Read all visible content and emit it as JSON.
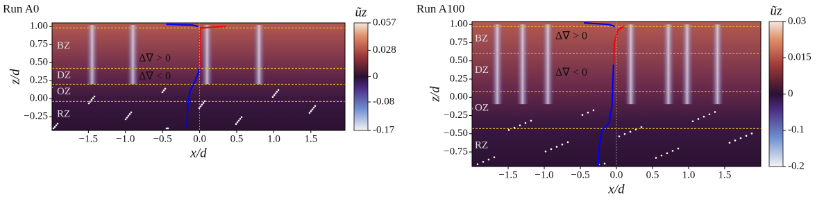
{
  "chart_data": [
    {
      "type": "field",
      "title": "Run A0",
      "xlabel": "x/d",
      "ylabel": "z/d",
      "xlim": [
        -1.99,
        1.96
      ],
      "ylim": [
        -0.44,
        1.05
      ],
      "xticks": [
        {
          "value": -1.5,
          "label": "−1.5"
        },
        {
          "value": -1,
          "label": "−1.0"
        },
        {
          "value": -0.5,
          "label": "−0.5"
        },
        {
          "value": 0,
          "label": "0.0"
        },
        0.5,
        {
          "value": 1,
          "label": "1.0"
        },
        1.5
      ],
      "yticks": [
        {
          "value": -0.25,
          "label": "−0.25"
        },
        {
          "value": 0,
          "label": "0.00"
        },
        {
          "value": 0.25,
          "label": "0.25"
        },
        {
          "value": 0.5,
          "label": "0.50"
        },
        {
          "value": 0.75,
          "label": "0.75"
        },
        {
          "value": 1,
          "label": "1.00"
        }
      ],
      "zone_boundaries": [
        0.98,
        0.42,
        0.2,
        -0.04
      ],
      "zones": [
        "BZ",
        "DZ",
        "OZ",
        "RZ"
      ],
      "annotations": [
        {
          "text": "Δ∇ > 0",
          "color": "#ff0000"
        },
        {
          "text": "Δ∇ < 0",
          "color": "#0000ff"
        }
      ],
      "profiles": [
        {
          "color": "#0000ff",
          "x": [
            -0.17,
            -0.16,
            -0.13,
            -0.06,
            -0.02,
            -0.01
          ],
          "y": [
            -0.4,
            -0.1,
            0.1,
            0.25,
            0.35,
            0.42
          ]
        },
        {
          "color": "#ff0000",
          "x": [
            0,
            0,
            0.01,
            0.35
          ],
          "y": [
            0.42,
            0.8,
            0.98,
            1.0
          ]
        },
        {
          "color": "#0000ff",
          "x": [
            -0.45,
            -0.1,
            -0.02
          ],
          "y": [
            1.03,
            1.02,
            1.0
          ]
        }
      ],
      "colorbar": {
        "label": "ũz",
        "clim": [
          -0.17,
          0.057
        ],
        "center": 0,
        "ticks": [
          0.057,
          0.028,
          0,
          -0.08,
          -0.17
        ]
      }
    },
    {
      "type": "field",
      "title": "Run A100",
      "xlabel": "x/d",
      "ylabel": "z/d",
      "xlim": [
        -2,
        2
      ],
      "ylim": [
        -0.95,
        1.04
      ],
      "xticks": [
        {
          "value": -1.5,
          "label": "−1.5"
        },
        {
          "value": -1,
          "label": "−1.0"
        },
        {
          "value": -0.5,
          "label": "−0.5"
        },
        {
          "value": 0,
          "label": "0.0"
        },
        0.5,
        {
          "value": 1,
          "label": "1.0"
        },
        1.5
      ],
      "yticks": [
        {
          "value": -0.75,
          "label": "−0.75"
        },
        {
          "value": -0.5,
          "label": "−0.50"
        },
        {
          "value": -0.25,
          "label": "−0.25"
        },
        {
          "value": 0,
          "label": "0.00"
        },
        {
          "value": 0.25,
          "label": "0.25"
        },
        {
          "value": 0.5,
          "label": "0.50"
        },
        {
          "value": 0.75,
          "label": "0.75"
        },
        {
          "value": 1,
          "label": "1.00"
        }
      ],
      "zone_boundaries": [
        0.97,
        0.6,
        0.08,
        -0.43
      ],
      "zones": [
        "BZ",
        "DZ",
        "OZ",
        "RZ"
      ],
      "annotations": [
        {
          "text": "Δ∇ > 0",
          "color": "#ff0000"
        },
        {
          "text": "Δ∇ < 0",
          "color": "#0000ff"
        }
      ],
      "profiles": [
        {
          "color": "#0000ff",
          "x": [
            -0.25,
            -0.24,
            -0.2,
            -0.1,
            -0.06,
            -0.05,
            -0.04
          ],
          "y": [
            -0.95,
            -0.7,
            -0.45,
            -0.35,
            -0.1,
            0.2,
            0.45
          ]
        },
        {
          "color": "#ff0000",
          "x": [
            -0.04,
            -0.03,
            0.02,
            0.1
          ],
          "y": [
            0.45,
            0.75,
            0.92,
            0.97
          ]
        },
        {
          "color": "#0000ff",
          "x": [
            -0.45,
            -0.1,
            -0.02
          ],
          "y": [
            1.02,
            1.0,
            0.97
          ]
        }
      ],
      "colorbar": {
        "label": "ũz",
        "clim": [
          -0.2,
          0.03
        ],
        "center": 0,
        "ticks": [
          0.03,
          0.015,
          0,
          -0.1,
          -0.2
        ]
      }
    }
  ]
}
